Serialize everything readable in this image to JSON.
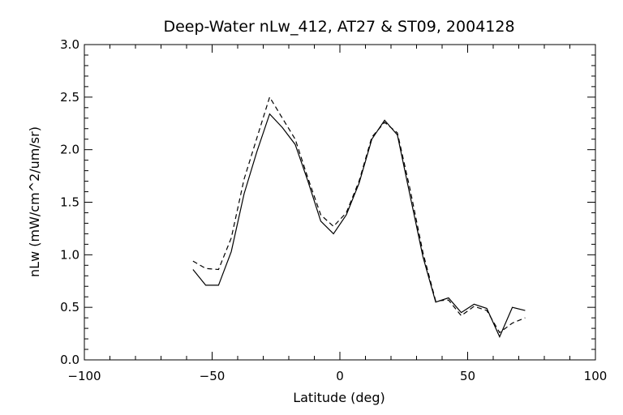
{
  "chart_data": {
    "type": "line",
    "title": "Deep-Water nLw_412, AT27 & ST09, 2004128",
    "xlabel": "Latitude (deg)",
    "ylabel": "nLw (mW/cm^2/um/sr)",
    "xlim": [
      -100,
      100
    ],
    "ylim": [
      0.0,
      3.0
    ],
    "xticks": [
      "−100",
      "−50",
      "0",
      "50",
      "100"
    ],
    "yticks": [
      "0.0",
      "0.5",
      "1.0",
      "1.5",
      "2.0",
      "2.5",
      "3.0"
    ],
    "grid": false,
    "series": [
      {
        "style": "solid",
        "points": [
          [
            -57.5,
            0.86
          ],
          [
            -52.5,
            0.71
          ],
          [
            -47.5,
            0.71
          ],
          [
            -42.5,
            1.03
          ],
          [
            -37.5,
            1.58
          ],
          [
            -32.5,
            1.98
          ],
          [
            -27.5,
            2.34
          ],
          [
            -22.5,
            2.21
          ],
          [
            -17.5,
            2.05
          ],
          [
            -12.5,
            1.7
          ],
          [
            -7.5,
            1.32
          ],
          [
            -2.5,
            1.2
          ],
          [
            2.5,
            1.38
          ],
          [
            7.5,
            1.68
          ],
          [
            12.5,
            2.1
          ],
          [
            17.5,
            2.28
          ],
          [
            22.5,
            2.14
          ],
          [
            27.5,
            1.56
          ],
          [
            32.5,
            0.98
          ],
          [
            37.5,
            0.55
          ],
          [
            42.5,
            0.59
          ],
          [
            47.5,
            0.45
          ],
          [
            52.5,
            0.53
          ],
          [
            57.5,
            0.49
          ],
          [
            62.5,
            0.22
          ],
          [
            67.5,
            0.5
          ],
          [
            72.5,
            0.47
          ]
        ]
      },
      {
        "style": "dashed",
        "points": [
          [
            -57.5,
            0.94
          ],
          [
            -52.5,
            0.87
          ],
          [
            -47.5,
            0.86
          ],
          [
            -42.5,
            1.16
          ],
          [
            -37.5,
            1.72
          ],
          [
            -32.5,
            2.11
          ],
          [
            -27.5,
            2.5
          ],
          [
            -22.5,
            2.3
          ],
          [
            -17.5,
            2.1
          ],
          [
            -12.5,
            1.73
          ],
          [
            -7.5,
            1.38
          ],
          [
            -2.5,
            1.27
          ],
          [
            2.5,
            1.4
          ],
          [
            7.5,
            1.7
          ],
          [
            12.5,
            2.12
          ],
          [
            17.5,
            2.26
          ],
          [
            22.5,
            2.16
          ],
          [
            27.5,
            1.62
          ],
          [
            32.5,
            1.02
          ],
          [
            37.5,
            0.56
          ],
          [
            42.5,
            0.57
          ],
          [
            47.5,
            0.42
          ],
          [
            52.5,
            0.51
          ],
          [
            57.5,
            0.47
          ],
          [
            62.5,
            0.26
          ],
          [
            67.5,
            0.35
          ],
          [
            72.5,
            0.4
          ]
        ]
      }
    ]
  }
}
